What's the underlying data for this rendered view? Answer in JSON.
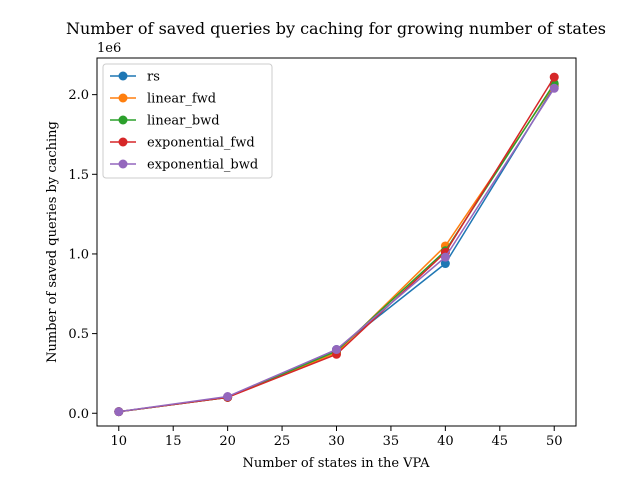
{
  "chart_data": {
    "type": "line",
    "title": "Number of saved queries by caching for growing number of states",
    "xlabel": "Number of states in the VPA",
    "ylabel": "Number of saved queries by caching",
    "y_offset_label": "1e6",
    "x": [
      10,
      20,
      30,
      40,
      50
    ],
    "xlim": [
      8,
      52
    ],
    "ylim": [
      -0.08,
      2.23
    ],
    "x_ticks": [
      10,
      15,
      20,
      25,
      30,
      35,
      40,
      45,
      50
    ],
    "y_ticks": [
      0.0,
      0.5,
      1.0,
      1.5,
      2.0
    ],
    "y_tick_labels": [
      "0.0",
      "0.5",
      "1.0",
      "1.5",
      "2.0"
    ],
    "grid": false,
    "legend_position": "top-left",
    "series": [
      {
        "name": "rs",
        "color": "#1f77b4",
        "values": [
          0.01,
          0.1,
          0.4,
          0.94,
          2.05
        ]
      },
      {
        "name": "linear_fwd",
        "color": "#ff7f0e",
        "values": [
          0.01,
          0.1,
          0.38,
          1.05,
          2.06
        ]
      },
      {
        "name": "linear_bwd",
        "color": "#2ca02c",
        "values": [
          0.01,
          0.1,
          0.39,
          1.02,
          2.07
        ]
      },
      {
        "name": "exponential_fwd",
        "color": "#d62728",
        "values": [
          0.01,
          0.1,
          0.37,
          1.01,
          2.11
        ]
      },
      {
        "name": "exponential_bwd",
        "color": "#9467bd",
        "values": [
          0.01,
          0.105,
          0.4,
          0.98,
          2.04
        ]
      }
    ]
  }
}
